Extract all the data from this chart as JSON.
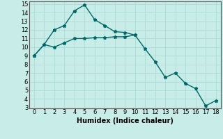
{
  "title": "",
  "xlabel": "Humidex (Indice chaleur)",
  "line1_x": [
    0,
    1,
    2,
    3,
    4,
    5,
    6,
    7,
    8,
    9,
    10,
    11,
    12,
    13,
    14,
    15,
    16,
    17,
    18
  ],
  "line1_y": [
    9,
    10.3,
    12.0,
    12.5,
    14.2,
    14.9,
    13.2,
    12.5,
    11.8,
    11.7,
    11.4,
    9.8,
    8.3,
    6.5,
    7.0,
    5.8,
    5.2,
    3.2,
    3.8
  ],
  "line2_x": [
    0,
    1,
    2,
    3,
    4,
    5,
    6,
    7,
    8,
    9,
    10
  ],
  "line2_y": [
    9,
    10.3,
    10.0,
    10.5,
    11.0,
    11.0,
    11.1,
    11.1,
    11.2,
    11.2,
    11.4
  ],
  "line_color": "#006868",
  "bg_color": "#c8ece8",
  "grid_color": "#b0ddd8",
  "spine_color": "#555555",
  "ylim_min": 3,
  "ylim_max": 15,
  "xlim_min": -0.5,
  "xlim_max": 18.5,
  "yticks": [
    3,
    4,
    5,
    6,
    7,
    8,
    9,
    10,
    11,
    12,
    13,
    14,
    15
  ],
  "xticks": [
    0,
    1,
    2,
    3,
    4,
    5,
    6,
    7,
    8,
    9,
    10,
    11,
    12,
    13,
    14,
    15,
    16,
    17,
    18
  ],
  "tick_fontsize": 6,
  "label_fontsize": 7,
  "linewidth": 1.0,
  "markersize": 3.5
}
